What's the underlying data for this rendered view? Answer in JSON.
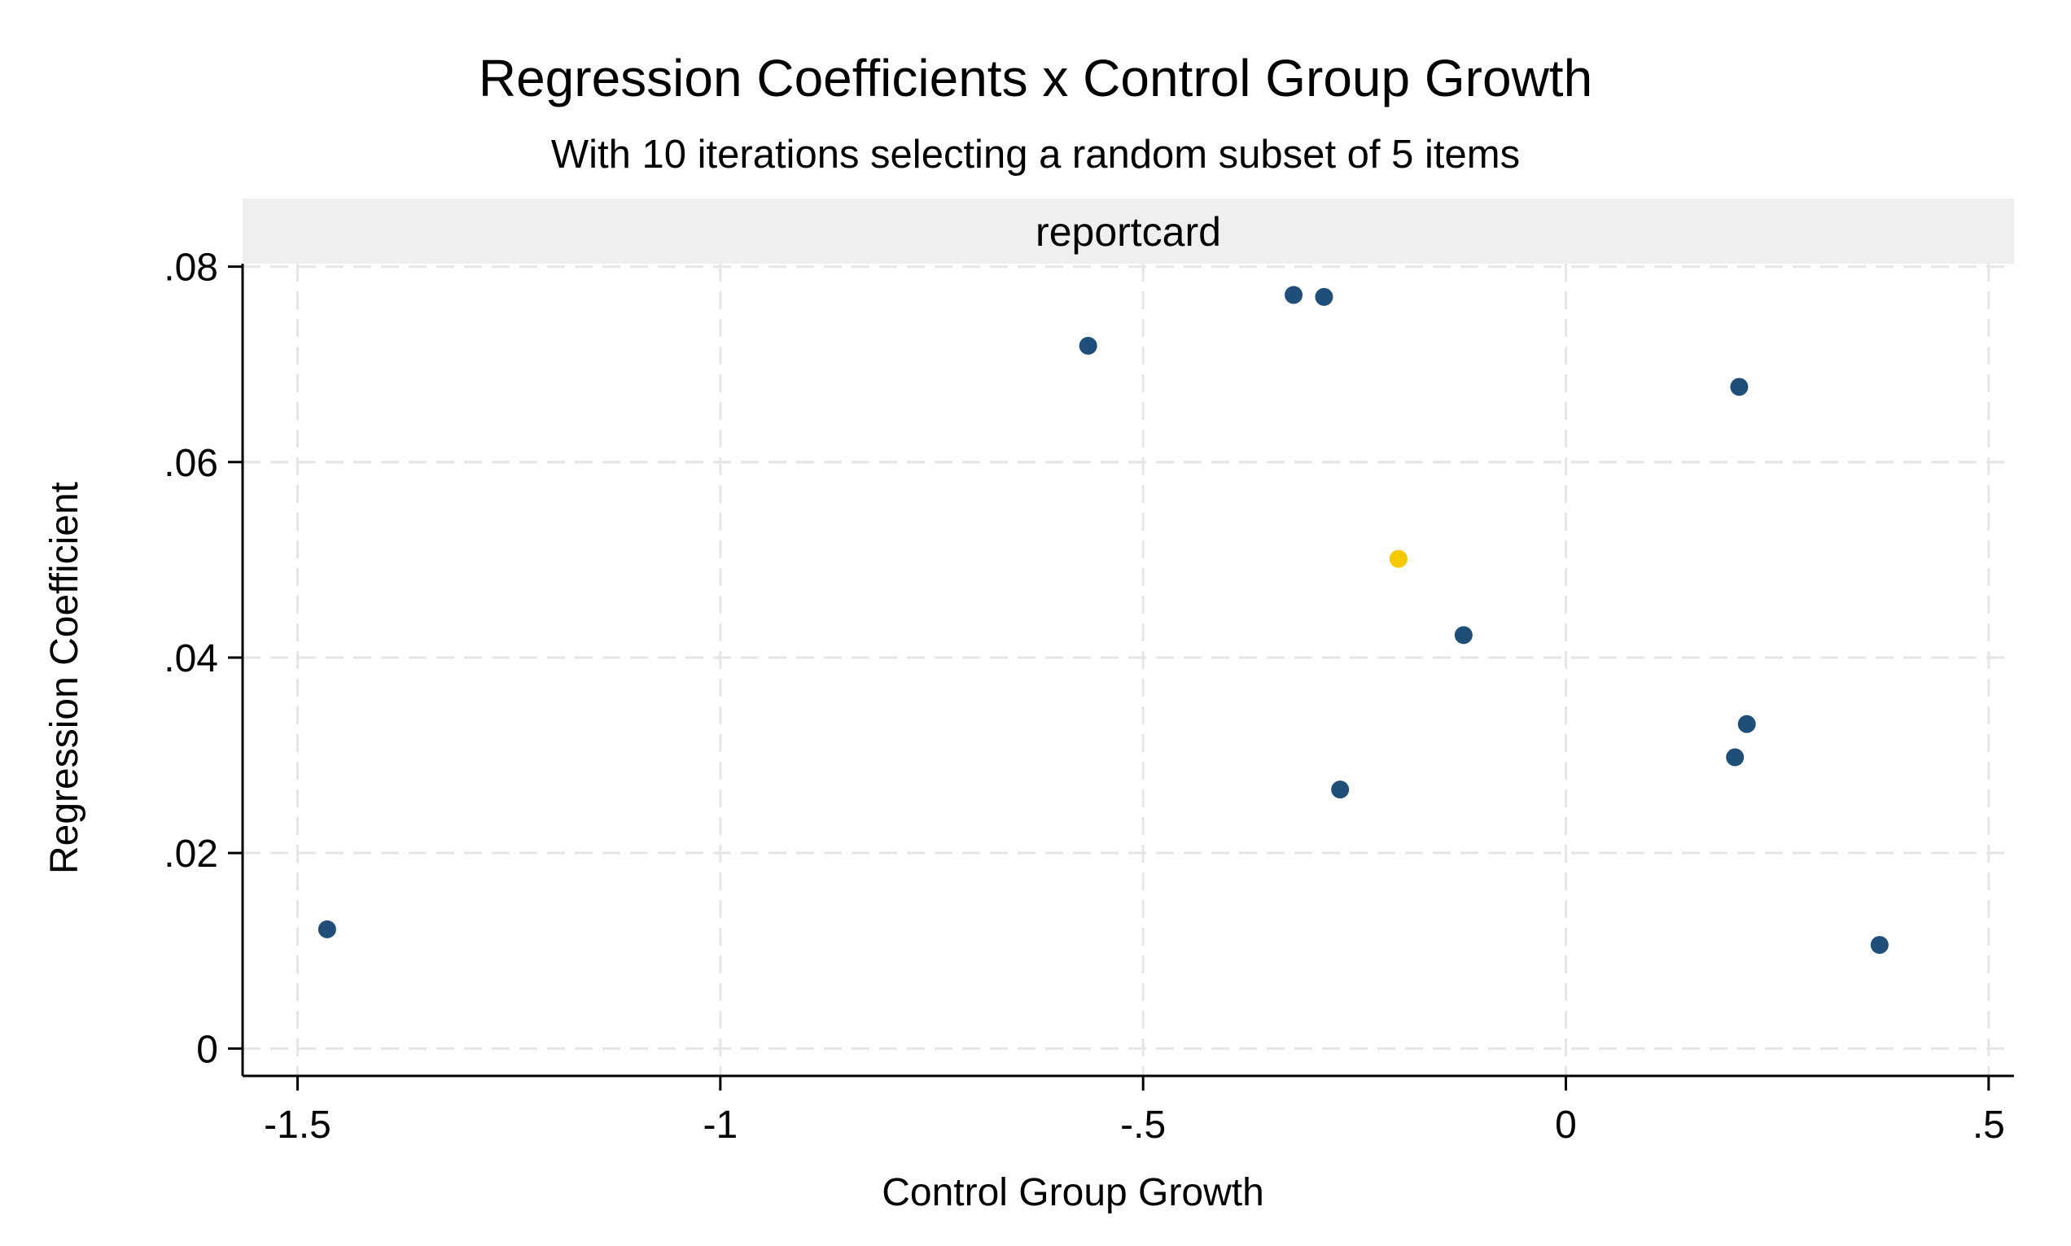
{
  "chart_data": {
    "type": "scatter",
    "title": "Regression Coefficients x Control Group Growth",
    "subtitle": "With 10 iterations selecting a random subset of 5 items",
    "panel_label": "reportcard",
    "xlabel": "Control Group Growth",
    "ylabel": "Regression Coefficient",
    "xlim": [
      -1.565,
      0.53
    ],
    "ylim": [
      -0.0028,
      0.0803
    ],
    "xticks": [
      -1.5,
      -1,
      -0.5,
      0,
      0.5
    ],
    "xtick_labels": [
      "-1.5",
      "-1",
      "-.5",
      "0",
      ".5"
    ],
    "yticks": [
      0,
      0.02,
      0.04,
      0.06,
      0.08
    ],
    "ytick_labels": [
      "0",
      ".02",
      ".04",
      ".06",
      ".08"
    ],
    "grid": true,
    "legend": "none",
    "series": [
      {
        "color": "#1f4e79",
        "points": [
          {
            "x": -1.465,
            "y": 0.0122
          },
          {
            "x": -0.565,
            "y": 0.0719
          },
          {
            "x": -0.322,
            "y": 0.0771
          },
          {
            "x": -0.286,
            "y": 0.0769
          },
          {
            "x": -0.267,
            "y": 0.0265
          },
          {
            "x": -0.121,
            "y": 0.0423
          },
          {
            "x": 0.205,
            "y": 0.0677
          },
          {
            "x": 0.214,
            "y": 0.0332
          },
          {
            "x": 0.2,
            "y": 0.0298
          },
          {
            "x": 0.371,
            "y": 0.0106
          }
        ]
      },
      {
        "color": "#f5c800",
        "points": [
          {
            "x": -0.198,
            "y": 0.0501
          }
        ]
      }
    ]
  }
}
